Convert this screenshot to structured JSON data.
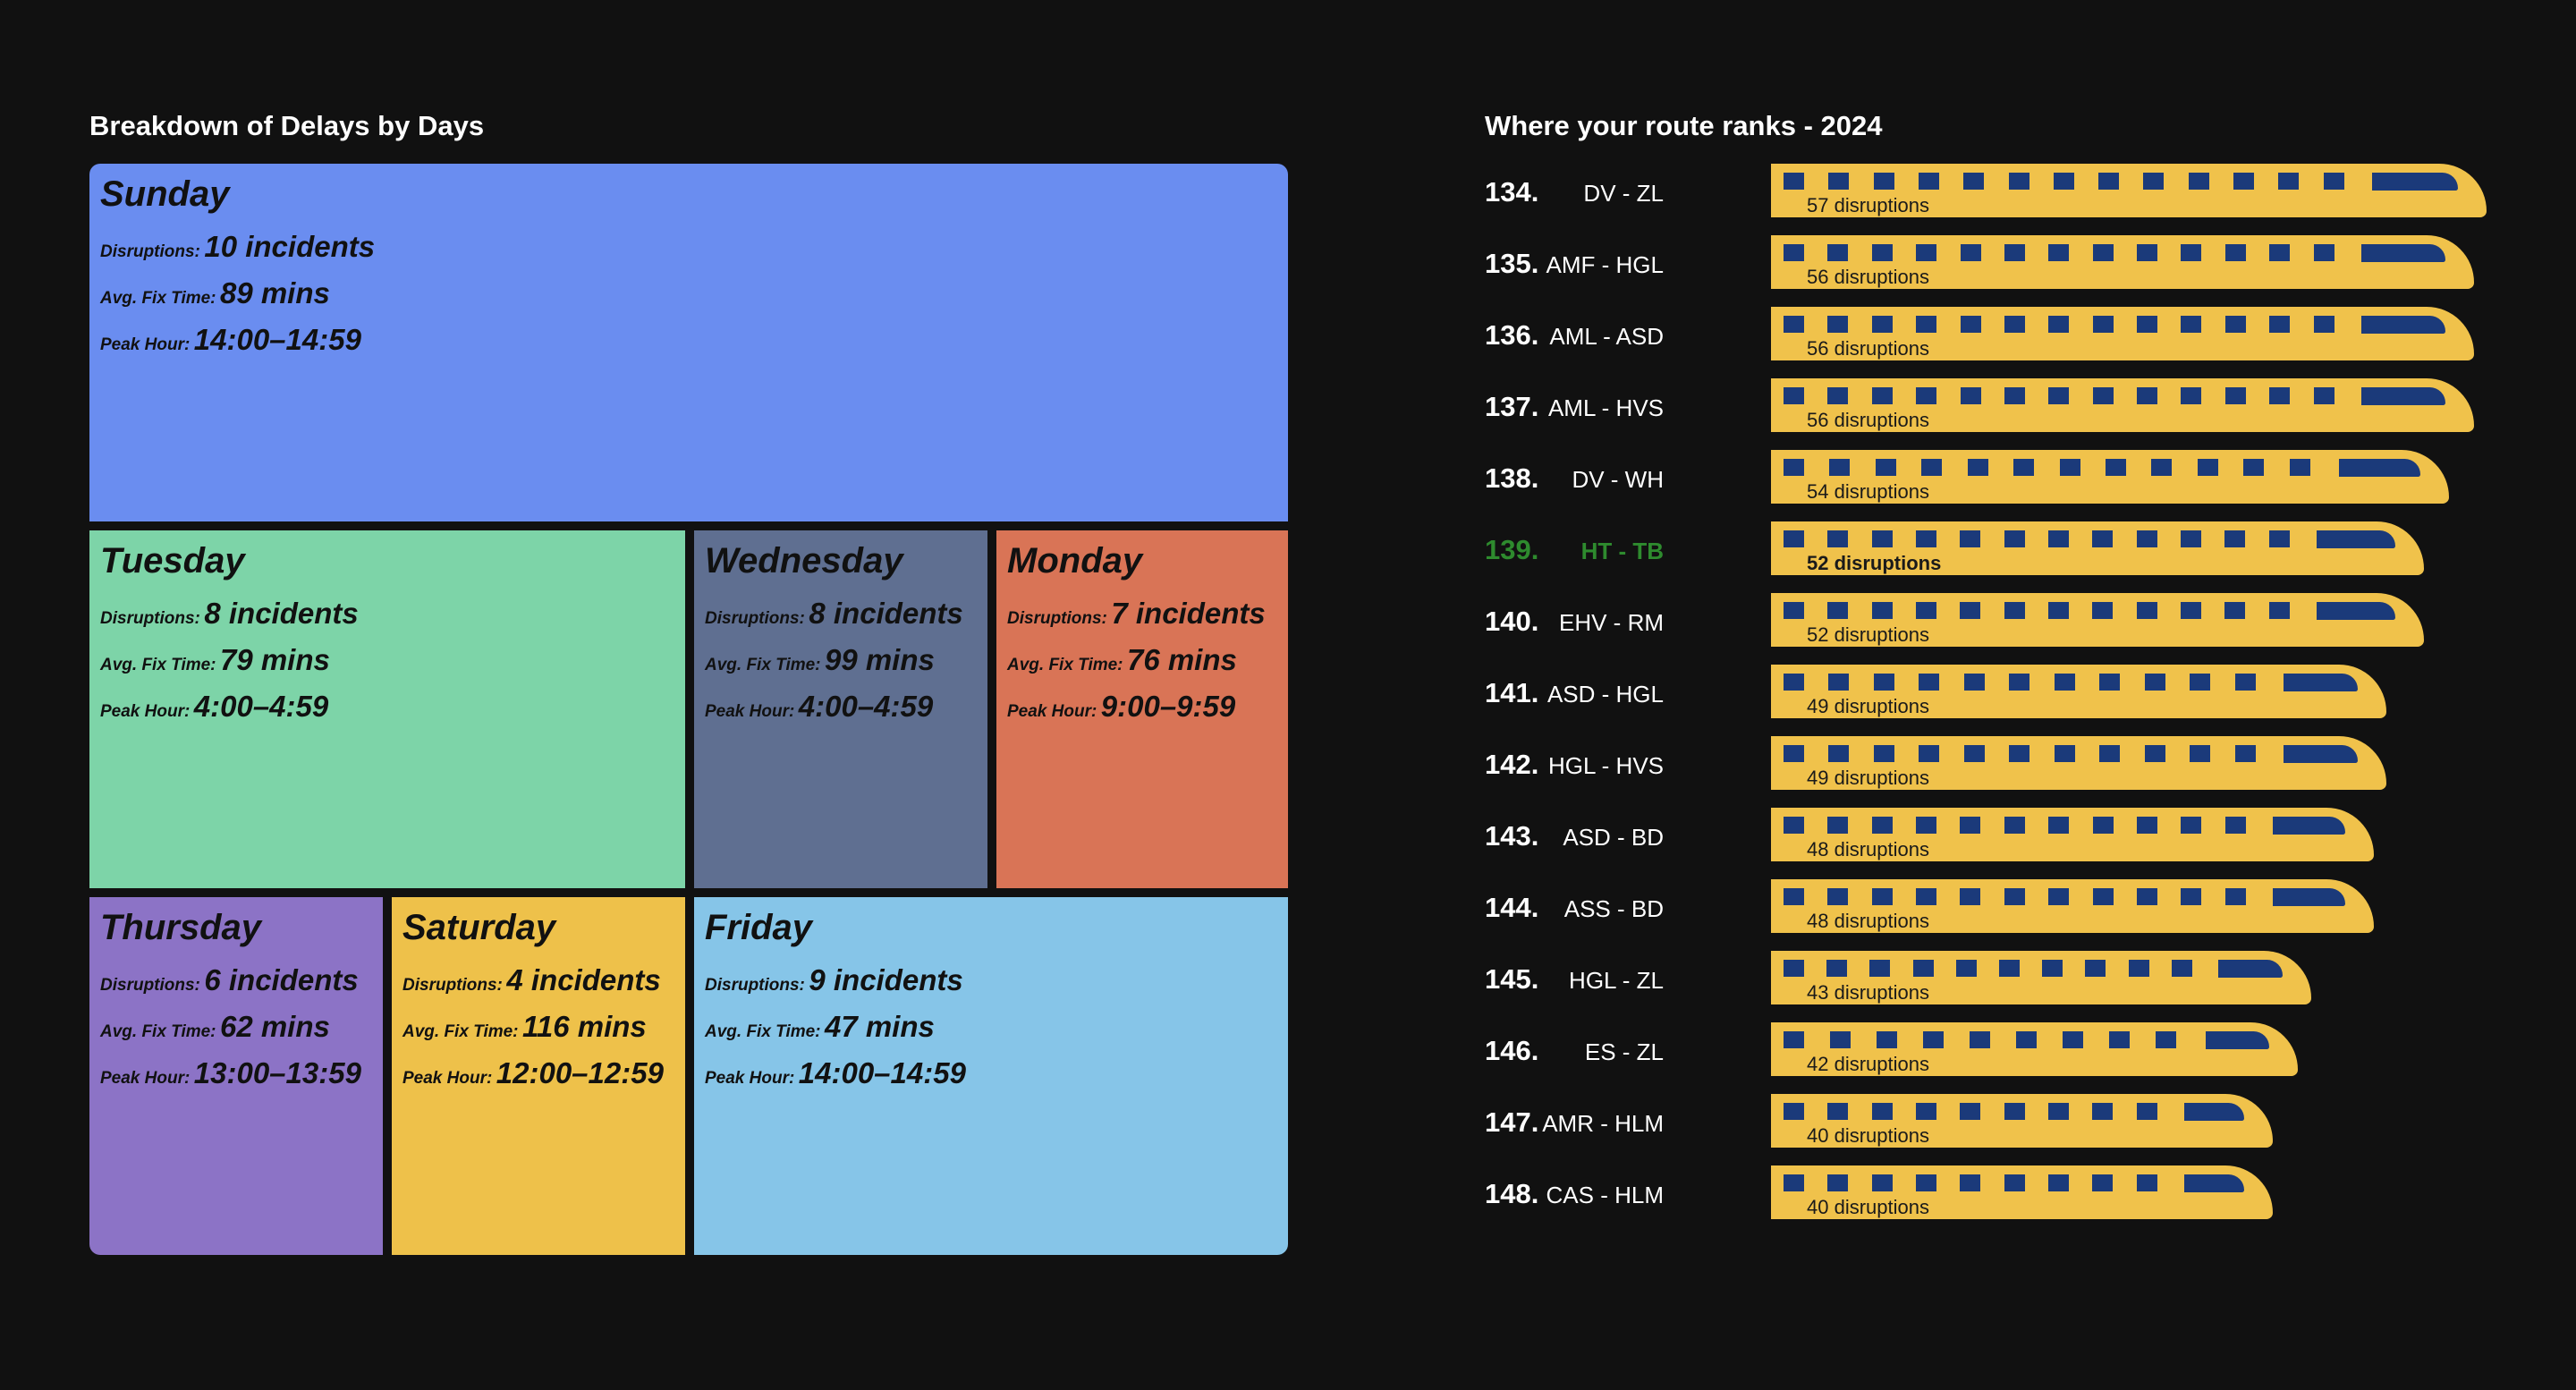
{
  "treemap": {
    "title": "Breakdown of Delays by Days",
    "labels": {
      "disruptions": "Disruptions:",
      "fix": "Avg. Fix Time:",
      "peak": "Peak Hour:"
    },
    "tiles": [
      {
        "day": "Sunday",
        "disruptions": "10 incidents",
        "fix": "89 mins",
        "peak": "14:00–14:59",
        "color": "#6a8df0"
      },
      {
        "day": "Tuesday",
        "disruptions": "8 incidents",
        "fix": "79 mins",
        "peak": "4:00–4:59",
        "color": "#7dd4a8"
      },
      {
        "day": "Wednesday",
        "disruptions": "8 incidents",
        "fix": "99 mins",
        "peak": "4:00–4:59",
        "color": "#5f6f91"
      },
      {
        "day": "Monday",
        "disruptions": "7 incidents",
        "fix": "76 mins",
        "peak": "9:00–9:59",
        "color": "#d97456"
      },
      {
        "day": "Thursday",
        "disruptions": "6 incidents",
        "fix": "62 mins",
        "peak": "13:00–13:59",
        "color": "#8c73c6"
      },
      {
        "day": "Saturday",
        "disruptions": "4 incidents",
        "fix": "116 mins",
        "peak": "12:00–12:59",
        "color": "#eec14a"
      },
      {
        "day": "Friday",
        "disruptions": "9 incidents",
        "fix": "47 mins",
        "peak": "14:00–14:59",
        "color": "#86c5e8"
      }
    ]
  },
  "ranks": {
    "title": "Where your route ranks - 2024",
    "train_color": "#f0c24b",
    "window_color": "#1b3a7a",
    "highlight_color": "#2e8b2e",
    "rows": [
      {
        "rank": "134.",
        "route": "DV - ZL",
        "label": "57 disruptions",
        "value": 57
      },
      {
        "rank": "135.",
        "route": "AMF - HGL",
        "label": "56 disruptions",
        "value": 56
      },
      {
        "rank": "136.",
        "route": "AML - ASD",
        "label": "56 disruptions",
        "value": 56
      },
      {
        "rank": "137.",
        "route": "AML - HVS",
        "label": "56 disruptions",
        "value": 56
      },
      {
        "rank": "138.",
        "route": "DV - WH",
        "label": "54 disruptions",
        "value": 54
      },
      {
        "rank": "139.",
        "route": "HT - TB",
        "label": "52 disruptions",
        "value": 52,
        "highlight": true
      },
      {
        "rank": "140.",
        "route": "EHV - RM",
        "label": "52 disruptions",
        "value": 52
      },
      {
        "rank": "141.",
        "route": "ASD - HGL",
        "label": "49 disruptions",
        "value": 49
      },
      {
        "rank": "142.",
        "route": "HGL - HVS",
        "label": "49 disruptions",
        "value": 49
      },
      {
        "rank": "143.",
        "route": "ASD - BD",
        "label": "48 disruptions",
        "value": 48
      },
      {
        "rank": "144.",
        "route": "ASS - BD",
        "label": "48 disruptions",
        "value": 48
      },
      {
        "rank": "145.",
        "route": "HGL - ZL",
        "label": "43 disruptions",
        "value": 43
      },
      {
        "rank": "146.",
        "route": "ES - ZL",
        "label": "42 disruptions",
        "value": 42
      },
      {
        "rank": "147.",
        "route": "AMR - HLM",
        "label": "40 disruptions",
        "value": 40
      },
      {
        "rank": "148.",
        "route": "CAS - HLM",
        "label": "40 disruptions",
        "value": 40
      }
    ]
  },
  "chart_data": [
    {
      "type": "treemap",
      "title": "Breakdown of Delays by Days",
      "categories": [
        "Sunday",
        "Tuesday",
        "Wednesday",
        "Monday",
        "Thursday",
        "Saturday",
        "Friday"
      ],
      "series": [
        {
          "name": "Disruptions (incidents)",
          "values": [
            10,
            8,
            8,
            7,
            6,
            4,
            9
          ]
        },
        {
          "name": "Avg. Fix Time (mins)",
          "values": [
            89,
            79,
            99,
            76,
            62,
            116,
            47
          ]
        }
      ],
      "peak_hour": [
        "14:00–14:59",
        "4:00–4:59",
        "4:00–4:59",
        "9:00–9:59",
        "13:00–13:59",
        "12:00–12:59",
        "14:00–14:59"
      ]
    },
    {
      "type": "bar",
      "title": "Where your route ranks - 2024",
      "categories": [
        "DV - ZL",
        "AMF - HGL",
        "AML - ASD",
        "AML - HVS",
        "DV - WH",
        "HT - TB",
        "EHV - RM",
        "ASD - HGL",
        "HGL - HVS",
        "ASD - BD",
        "ASS - BD",
        "HGL - ZL",
        "ES - ZL",
        "AMR - HLM",
        "CAS - HLM"
      ],
      "ranks": [
        134,
        135,
        136,
        137,
        138,
        139,
        140,
        141,
        142,
        143,
        144,
        145,
        146,
        147,
        148
      ],
      "values": [
        57,
        56,
        56,
        56,
        54,
        52,
        52,
        49,
        49,
        48,
        48,
        43,
        42,
        40,
        40
      ],
      "highlight": "HT - TB",
      "xlim": [
        0,
        57
      ]
    }
  ]
}
